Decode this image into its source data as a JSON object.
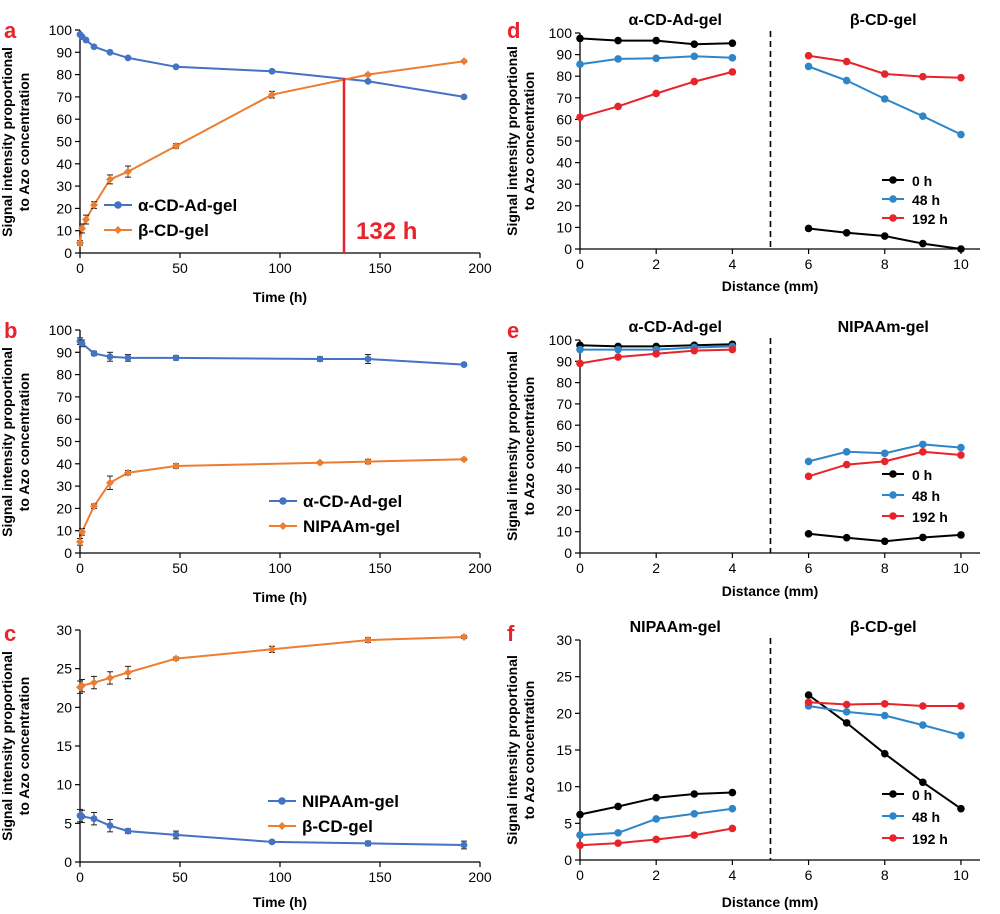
{
  "colors": {
    "blue": "#4472C4",
    "orange": "#ED7D31",
    "black": "#000000",
    "mid_blue": "#2E86C9",
    "red": "#E8242A",
    "panel_letter": "#E8242A",
    "annotation": "#E8242A"
  },
  "chart_data": [
    {
      "panel": "a",
      "type": "line",
      "xlabel": "Time (h)",
      "ylabel": "Signal intensity proportional to Azo concentration",
      "xlim": [
        0,
        200
      ],
      "ylim": [
        0,
        100
      ],
      "xticks": [
        0,
        50,
        100,
        150,
        200
      ],
      "yticks": [
        0,
        10,
        20,
        30,
        40,
        50,
        60,
        70,
        80,
        90,
        100
      ],
      "legend_position": "bottom-left",
      "series": [
        {
          "name": "α-CD-Ad-gel",
          "color": "#4472C4",
          "marker": "circle",
          "x": [
            0,
            1,
            3,
            7,
            15,
            24,
            48,
            96,
            144,
            192
          ],
          "y": [
            98,
            97,
            95.5,
            92.5,
            90,
            87.5,
            83.5,
            81.5,
            77,
            70
          ],
          "err": [
            0.5,
            0.5,
            0.5,
            0.5,
            0.5,
            0.5,
            0.5,
            0.5,
            0.5,
            0.5
          ]
        },
        {
          "name": "β-CD-gel",
          "color": "#ED7D31",
          "marker": "diamond",
          "x": [
            0,
            1,
            3,
            7,
            15,
            24,
            48,
            96,
            144,
            192
          ],
          "y": [
            4.5,
            11,
            15,
            21.5,
            33,
            36.5,
            48,
            71,
            80,
            86
          ],
          "err": [
            1,
            2,
            2,
            1.5,
            2,
            2.5,
            1,
            1.5,
            0.5,
            0.5
          ]
        }
      ],
      "annotation": {
        "text": "132 h",
        "x": 132
      }
    },
    {
      "panel": "b",
      "type": "line",
      "xlabel": "Time (h)",
      "ylabel": "Signal intensity proportional to Azo concentration",
      "xlim": [
        0,
        200
      ],
      "ylim": [
        0,
        100
      ],
      "xticks": [
        0,
        50,
        100,
        150,
        200
      ],
      "yticks": [
        0,
        10,
        20,
        30,
        40,
        50,
        60,
        70,
        80,
        90,
        100
      ],
      "legend_position": "bottom-right",
      "series": [
        {
          "name": "α-CD-Ad-gel",
          "color": "#4472C4",
          "marker": "circle",
          "x": [
            0,
            1,
            7,
            15,
            24,
            48,
            120,
            144,
            192
          ],
          "y": [
            95,
            94,
            89.5,
            88,
            87.5,
            87.5,
            87,
            87,
            84.5
          ],
          "err": [
            1.5,
            1.5,
            1,
            2,
            1.5,
            1,
            1,
            2,
            0.5
          ]
        },
        {
          "name": "NIPAAm-gel",
          "color": "#ED7D31",
          "marker": "diamond",
          "x": [
            0,
            1,
            7,
            15,
            24,
            48,
            120,
            144,
            192
          ],
          "y": [
            5,
            9.5,
            21,
            31.5,
            36,
            39,
            40.5,
            41,
            42
          ],
          "err": [
            1.5,
            1.5,
            1,
            3,
            1,
            1,
            0.5,
            1,
            0.5
          ]
        }
      ]
    },
    {
      "panel": "c",
      "type": "line",
      "xlabel": "Time (h)",
      "ylabel": "Signal intensity proportional to Azo concentration",
      "xlim": [
        0,
        200
      ],
      "ylim": [
        0,
        30
      ],
      "xticks": [
        0,
        50,
        100,
        150,
        200
      ],
      "yticks": [
        0,
        5,
        10,
        15,
        20,
        25,
        30
      ],
      "legend_position": "bottom-right",
      "series": [
        {
          "name": "NIPAAm-gel",
          "color": "#4472C4",
          "marker": "circle",
          "x": [
            0,
            1,
            7,
            15,
            24,
            48,
            96,
            144,
            192
          ],
          "y": [
            6,
            5.9,
            5.6,
            4.7,
            4,
            3.5,
            2.6,
            2.4,
            2.2
          ],
          "err": [
            0.8,
            0.8,
            0.8,
            0.8,
            0.3,
            0.5,
            0.2,
            0.3,
            0.5
          ]
        },
        {
          "name": "β-CD-gel",
          "color": "#ED7D31",
          "marker": "diamond",
          "x": [
            0,
            1,
            7,
            15,
            24,
            48,
            96,
            144,
            192
          ],
          "y": [
            22.6,
            22.8,
            23.2,
            23.8,
            24.5,
            26.3,
            27.5,
            28.7,
            29.1
          ],
          "err": [
            0.8,
            0.8,
            0.8,
            0.8,
            0.8,
            0.2,
            0.4,
            0.3,
            0.2
          ]
        }
      ]
    },
    {
      "panel": "d",
      "type": "line",
      "xlabel": "Distance (mm)",
      "ylabel": "Signal intensity proportional to Azo concentration",
      "xlim": [
        0,
        10.5
      ],
      "ylim": [
        0,
        100
      ],
      "xticks": [
        0,
        2,
        4,
        6,
        8,
        10
      ],
      "yticks": [
        0,
        10,
        20,
        30,
        40,
        50,
        60,
        70,
        80,
        90,
        100
      ],
      "divider_x": 5,
      "regions": [
        "α-CD-Ad-gel",
        "β-CD-gel"
      ],
      "legend_position": "bottom-right",
      "series": [
        {
          "name": "0 h",
          "color": "#000000",
          "segments": [
            {
              "x": [
                0,
                1,
                2,
                3,
                4
              ],
              "y": [
                97.5,
                96.5,
                96.5,
                94.8,
                95.3
              ]
            },
            {
              "x": [
                6,
                7,
                8,
                9,
                10
              ],
              "y": [
                9.5,
                7.5,
                6,
                2.5,
                0
              ]
            }
          ]
        },
        {
          "name": "48 h",
          "color": "#2E86C9",
          "segments": [
            {
              "x": [
                0,
                1,
                2,
                3,
                4
              ],
              "y": [
                85.5,
                88,
                88.3,
                89.2,
                88.5
              ]
            },
            {
              "x": [
                6,
                7,
                8,
                9,
                10
              ],
              "y": [
                84.5,
                78,
                69.5,
                61.5,
                53
              ]
            }
          ]
        },
        {
          "name": "192 h",
          "color": "#E8242A",
          "segments": [
            {
              "x": [
                0,
                1,
                2,
                3,
                4
              ],
              "y": [
                61,
                66,
                72,
                77.5,
                82
              ]
            },
            {
              "x": [
                6,
                7,
                8,
                9,
                10
              ],
              "y": [
                89.5,
                86.8,
                81,
                79.8,
                79.3
              ]
            }
          ]
        }
      ]
    },
    {
      "panel": "e",
      "type": "line",
      "xlabel": "Distance (mm)",
      "ylabel": "Signal intensity proportional to Azo concentration",
      "xlim": [
        0,
        10.5
      ],
      "ylim": [
        0,
        100
      ],
      "xticks": [
        0,
        2,
        4,
        6,
        8,
        10
      ],
      "yticks": [
        0,
        10,
        20,
        30,
        40,
        50,
        60,
        70,
        80,
        90,
        100
      ],
      "divider_x": 5,
      "regions": [
        "α-CD-Ad-gel",
        "NIPAAm-gel"
      ],
      "legend_position": "bottom-right",
      "series": [
        {
          "name": "0 h",
          "color": "#000000",
          "segments": [
            {
              "x": [
                0,
                1,
                2,
                3,
                4
              ],
              "y": [
                97.5,
                97,
                97,
                97.5,
                98
              ]
            },
            {
              "x": [
                6,
                7,
                8,
                9,
                10
              ],
              "y": [
                9,
                7.2,
                5.5,
                7.3,
                8.5
              ]
            }
          ]
        },
        {
          "name": "48 h",
          "color": "#2E86C9",
          "segments": [
            {
              "x": [
                0,
                1,
                2,
                3,
                4
              ],
              "y": [
                95.5,
                95.5,
                95.5,
                96.5,
                97
              ]
            },
            {
              "x": [
                6,
                7,
                8,
                9,
                10
              ],
              "y": [
                43,
                47.5,
                46.8,
                51,
                49.5
              ]
            }
          ]
        },
        {
          "name": "192 h",
          "color": "#E8242A",
          "segments": [
            {
              "x": [
                0,
                1,
                2,
                3,
                4
              ],
              "y": [
                89,
                92,
                93.5,
                95,
                95.5
              ]
            },
            {
              "x": [
                6,
                7,
                8,
                9,
                10
              ],
              "y": [
                36,
                41.5,
                43,
                47.5,
                46
              ]
            }
          ]
        }
      ]
    },
    {
      "panel": "f",
      "type": "line",
      "xlabel": "Distance (mm)",
      "ylabel": "Signal intensity proportional to Azo concentration",
      "xlim": [
        0,
        10.5
      ],
      "ylim": [
        0,
        30
      ],
      "xticks": [
        0,
        2,
        4,
        6,
        8,
        10
      ],
      "yticks": [
        0,
        5,
        10,
        15,
        20,
        25,
        30
      ],
      "divider_x": 5,
      "regions": [
        "NIPAAm-gel",
        "β-CD-gel"
      ],
      "legend_position": "bottom-right",
      "series": [
        {
          "name": "0 h",
          "color": "#000000",
          "segments": [
            {
              "x": [
                0,
                1,
                2,
                3,
                4
              ],
              "y": [
                6.2,
                7.3,
                8.5,
                9,
                9.2
              ]
            },
            {
              "x": [
                6,
                7,
                8,
                9,
                10
              ],
              "y": [
                22.5,
                18.7,
                14.5,
                10.6,
                7
              ]
            }
          ]
        },
        {
          "name": "48 h",
          "color": "#2E86C9",
          "segments": [
            {
              "x": [
                0,
                1,
                2,
                3,
                4
              ],
              "y": [
                3.4,
                3.7,
                5.6,
                6.3,
                7
              ]
            },
            {
              "x": [
                6,
                7,
                8,
                9,
                10
              ],
              "y": [
                21,
                20.2,
                19.7,
                18.4,
                17
              ]
            }
          ]
        },
        {
          "name": "192 h",
          "color": "#E8242A",
          "segments": [
            {
              "x": [
                0,
                1,
                2,
                3,
                4
              ],
              "y": [
                2,
                2.3,
                2.8,
                3.4,
                4.3
              ]
            },
            {
              "x": [
                6,
                7,
                8,
                9,
                10
              ],
              "y": [
                21.5,
                21.2,
                21.3,
                21,
                21
              ]
            }
          ]
        }
      ]
    }
  ]
}
